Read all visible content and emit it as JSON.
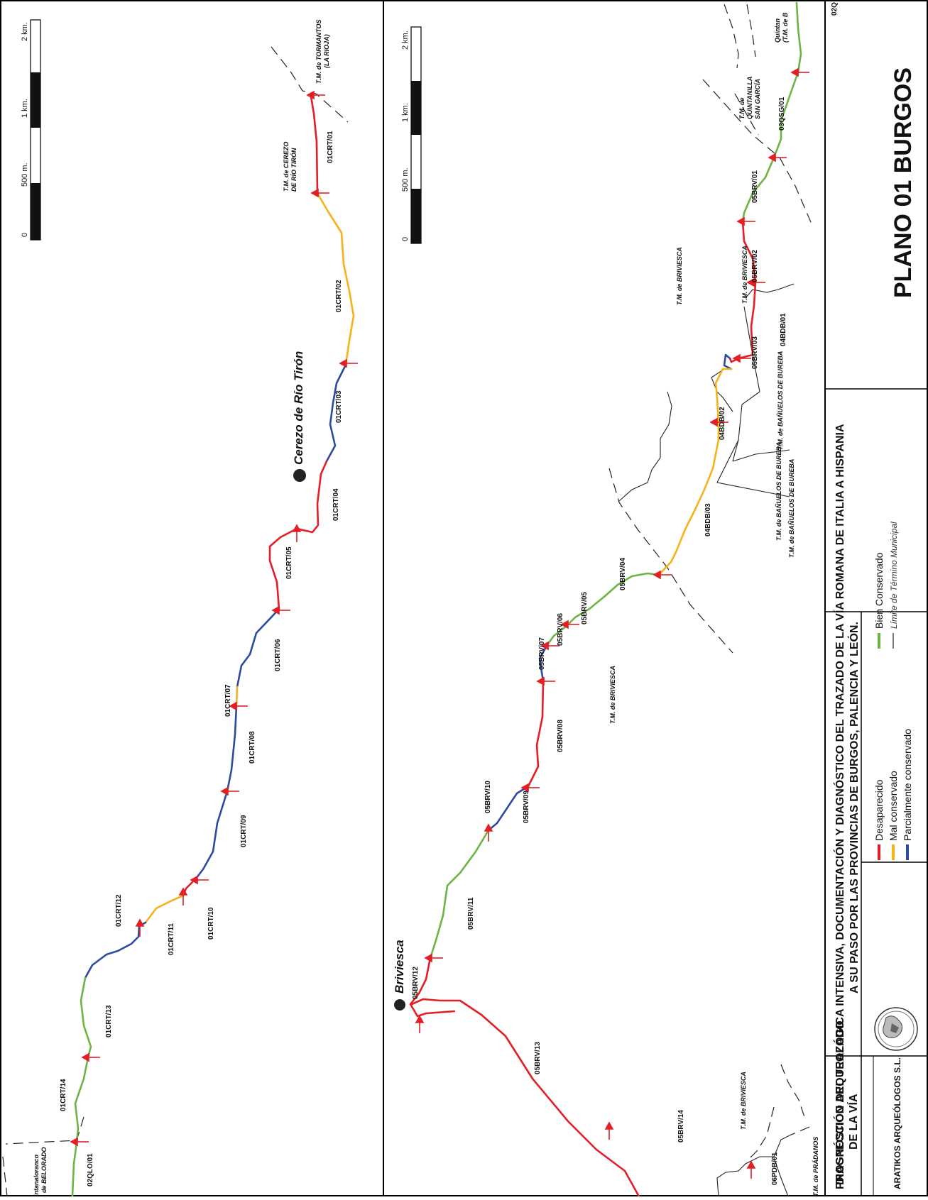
{
  "colors": {
    "desaparecido": "#e31e24",
    "mal": "#f5b21b",
    "parcial": "#2e4a9c",
    "bien": "#6cb443",
    "limite": "#222222"
  },
  "plano": "PLANO 01 BURGOS",
  "title_line1": "PROSPECCIÓN ARQUEOLÓGICA INTENSIVA, DOCUMENTACIÓN Y DIAGNÓSTICO DEL TRAZADO DE LA VÍA ROMANA DE ITALIA A HISPANIA",
  "title_line2": "A SU PASO POR LAS PROVINCIAS DE BURGOS, PALENCIA Y LEÓN.",
  "diagnostico": {
    "line1": "DIAGNÓSTICO DEL TRAZADO",
    "line2": "DE LA VÍA"
  },
  "company": "ARATIKOS ARQUEÓLOGOS S.L.",
  "legend": {
    "desaparecido": "Desaparecido",
    "mal": "Mal conservado",
    "parcial": "Parcialmente conservado",
    "bien": "Bien Conservado",
    "limite": "Límite de Término Municipal"
  },
  "scale": {
    "s0": "0",
    "s500": "500 m.",
    "s1k": "1 km.",
    "s2k": "2 km."
  },
  "towns": {
    "cerezo": "Cerezo de Río Tirón",
    "briviesca": "Briviesca"
  },
  "strip1_labels": {
    "crt01": "01CRT/01",
    "crt02": "01CRT/02",
    "crt03": "01CRT/03",
    "crt04": "01CRT/04",
    "crt05": "01CRT/05",
    "crt06": "01CRT/06",
    "crt07": "01CRT/07",
    "crt08": "01CRT/08",
    "crt09": "01CRT/09",
    "crt10": "01CRT/10",
    "crt11": "01CRT/11",
    "crt12": "01CRT/12",
    "crt13": "01CRT/13",
    "crt14": "01CRT/14",
    "qlo01": "02QLO/01"
  },
  "strip1_tm": {
    "tormantos1": "T.M. de TORMANTOS",
    "tormantos2": "(LA RIOJA)",
    "cerezo1": "T.M. de CEREZO",
    "cerezo2": "DE RÍO TIRÓN",
    "belorado1": "intanaloranco",
    "belorado2": ". de BELORADO"
  },
  "strip2_labels": {
    "qsg01": "03QSG/01",
    "brv01": "05BRV/01",
    "brv02": "05BRV/02",
    "brv03": "05BRV/03",
    "bdb01": "04BDB/01",
    "bdb02": "04BDB/02",
    "bdb03": "04BDB/03",
    "brv04": "05BRV/04",
    "brv05": "05BRV/05",
    "brv06": "05BRV/06",
    "brv07": "05BRV/07",
    "brv08": "05BRV/08",
    "brv09": "05BRV/09",
    "brv10": "05BRV/10",
    "brv11": "05BRV/11",
    "brv12": "05BRV/12",
    "brv13": "05BRV/13",
    "brv14": "05BRV/14",
    "pdb01": "06PDB/01",
    "q02": "02Q"
  },
  "strip2_tm": {
    "quintan1": "Quintan",
    "quintan2": "(T.M. de B",
    "qsg1": "T.M. de",
    "qsg2": "QUINTANILLA",
    "qsg3": "SAN GARCÍA",
    "briv_a": "T.M. de BRIVIESCA",
    "briv_b": "T.M. de BRIVIESCA",
    "briv_c": "T.M. de BRIVIESCA",
    "briv_d": "T.M. de BRIVIESCA",
    "banuelos_a": "T.M. de BAÑUELOS DE BUREBA",
    "banuelos_b": "T.M. de BAÑUELOS DE BUREBA",
    "banuelos_c": "T.M. de BAÑUELOS DE BUREBA",
    "pradanos": "T.M. de PRÁDANOS"
  }
}
